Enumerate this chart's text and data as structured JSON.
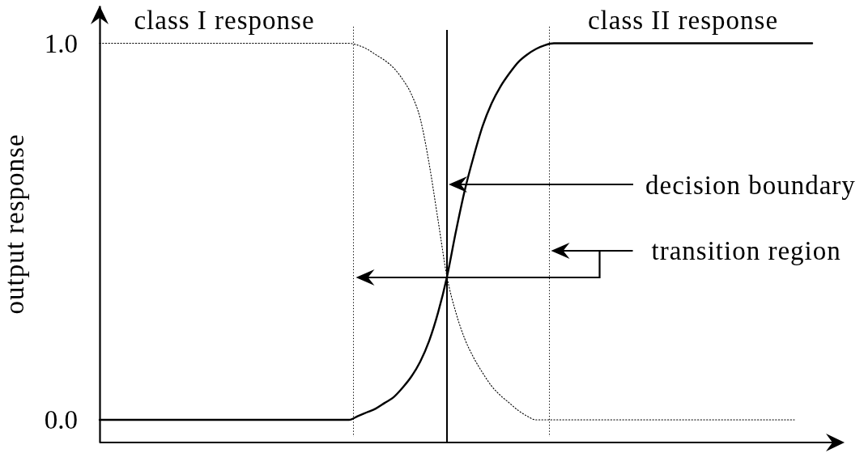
{
  "chart_data": {
    "type": "line",
    "ylabel": "output response",
    "categories": [
      null,
      null,
      null,
      null,
      null,
      null,
      null,
      null,
      null,
      null,
      null,
      null,
      null,
      null,
      null,
      null,
      null,
      null,
      null,
      null,
      null,
      null,
      null,
      null,
      null,
      null,
      null,
      null,
      null,
      null,
      null,
      null,
      null,
      null,
      null,
      null,
      null,
      null,
      null,
      null,
      null,
      null,
      null,
      null,
      null,
      null,
      null,
      null,
      null,
      null,
      null,
      null,
      null,
      null,
      null,
      null,
      null,
      null,
      null,
      null,
      null,
      null,
      null,
      null,
      null,
      null,
      null,
      null,
      null,
      null,
      null,
      null,
      null,
      null,
      null,
      null,
      null,
      null,
      null,
      null,
      null
    ],
    "series": [
      {
        "name": "class I response",
        "color": "#000000",
        "line_style": "dotted",
        "values": [
          1,
          1,
          1,
          1,
          1,
          1,
          1,
          1,
          1,
          1,
          1,
          1,
          1,
          1,
          1,
          1,
          1,
          1,
          1,
          1,
          1,
          1,
          1,
          1,
          1,
          1,
          1,
          1,
          1,
          0.995,
          0.985,
          0.97,
          0.955,
          0.935,
          0.905,
          0.865,
          0.8,
          0.68,
          0.53,
          0.38,
          0.285,
          0.215,
          0.165,
          0.125,
          0.09,
          0.065,
          0.045,
          0.025,
          0.01,
          0,
          0,
          0,
          0,
          0,
          0,
          0,
          0,
          0,
          0,
          0,
          0,
          0,
          0,
          0,
          0,
          0,
          0,
          0,
          0,
          0,
          0,
          0,
          0,
          0,
          0,
          0,
          0,
          0,
          0,
          null,
          null
        ]
      },
      {
        "name": "class II response",
        "color": "#000000",
        "line_style": "solid",
        "values": [
          0,
          0,
          0,
          0,
          0,
          0,
          0,
          0,
          0,
          0,
          0,
          0,
          0,
          0,
          0,
          0,
          0,
          0,
          0,
          0,
          0,
          0,
          0,
          0,
          0,
          0,
          0,
          0,
          0,
          0.01,
          0.02,
          0.03,
          0.045,
          0.06,
          0.085,
          0.115,
          0.155,
          0.21,
          0.285,
          0.38,
          0.5,
          0.61,
          0.7,
          0.78,
          0.84,
          0.885,
          0.92,
          0.95,
          0.97,
          0.985,
          0.995,
          1,
          1,
          1,
          1,
          1,
          1,
          1,
          1,
          1,
          1,
          1,
          1,
          1,
          1,
          1,
          1,
          1,
          1,
          1,
          1,
          1,
          1,
          1,
          1,
          1,
          1,
          1,
          1,
          1,
          1
        ]
      }
    ],
    "ylim": [
      -0.06,
      1.1
    ],
    "yticks": [
      {
        "value": 0,
        "label": "0.0"
      },
      {
        "value": 1,
        "label": "1.0"
      }
    ],
    "tick_labels": "y",
    "annotations": [
      "decision boundary",
      "transition region"
    ]
  }
}
